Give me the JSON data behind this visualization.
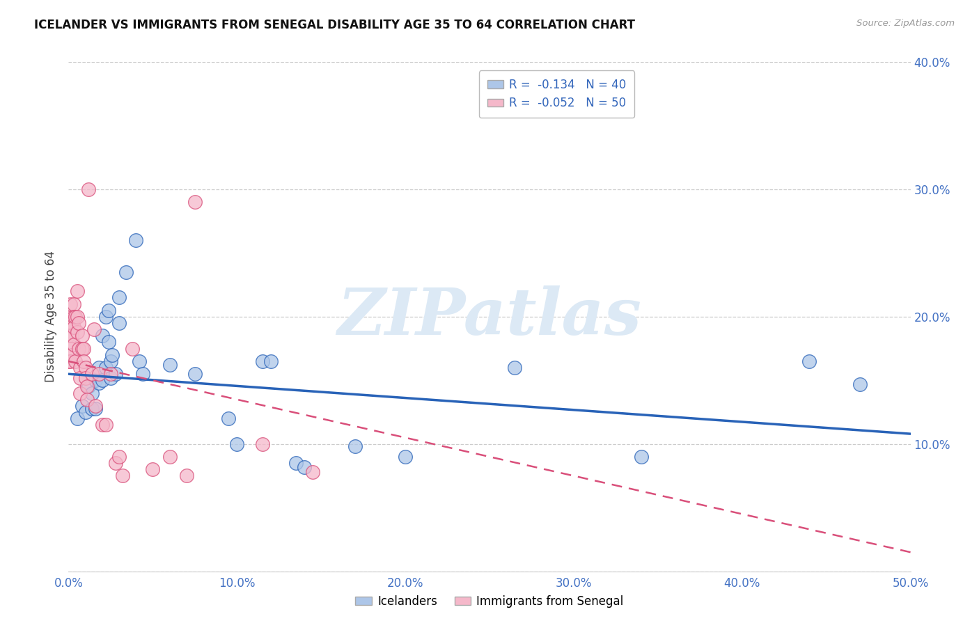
{
  "title": "ICELANDER VS IMMIGRANTS FROM SENEGAL DISABILITY AGE 35 TO 64 CORRELATION CHART",
  "source": "Source: ZipAtlas.com",
  "ylabel": "Disability Age 35 to 64",
  "xlim": [
    0.0,
    0.5
  ],
  "ylim": [
    0.0,
    0.4
  ],
  "xticks": [
    0.0,
    0.1,
    0.2,
    0.3,
    0.4,
    0.5
  ],
  "yticks": [
    0.0,
    0.1,
    0.2,
    0.3,
    0.4
  ],
  "ytick_labels_right": [
    "",
    "10.0%",
    "20.0%",
    "30.0%",
    "40.0%"
  ],
  "xtick_labels": [
    "0.0%",
    "10.0%",
    "20.0%",
    "30.0%",
    "40.0%",
    "50.0%"
  ],
  "legend1_label": "R =  -0.134   N = 40",
  "legend2_label": "R =  -0.052   N = 50",
  "legend_bottom1": "Icelanders",
  "legend_bottom2": "Immigrants from Senegal",
  "watermark": "ZIPatlas",
  "blue_color": "#adc6e8",
  "pink_color": "#f5b8ca",
  "blue_line_color": "#2963b8",
  "pink_line_color": "#d94f7a",
  "blue_line_start_y": 0.155,
  "blue_line_end_y": 0.108,
  "pink_line_start_y": 0.165,
  "pink_line_end_y": 0.015,
  "icelander_x": [
    0.005,
    0.008,
    0.01,
    0.012,
    0.014,
    0.014,
    0.016,
    0.016,
    0.018,
    0.018,
    0.02,
    0.02,
    0.022,
    0.022,
    0.024,
    0.024,
    0.025,
    0.025,
    0.026,
    0.028,
    0.03,
    0.03,
    0.034,
    0.04,
    0.042,
    0.044,
    0.06,
    0.075,
    0.095,
    0.1,
    0.115,
    0.12,
    0.135,
    0.14,
    0.17,
    0.2,
    0.265,
    0.34,
    0.44,
    0.47
  ],
  "icelander_y": [
    0.12,
    0.13,
    0.125,
    0.145,
    0.14,
    0.128,
    0.15,
    0.128,
    0.16,
    0.148,
    0.185,
    0.15,
    0.2,
    0.16,
    0.205,
    0.18,
    0.165,
    0.152,
    0.17,
    0.155,
    0.215,
    0.195,
    0.235,
    0.26,
    0.165,
    0.155,
    0.162,
    0.155,
    0.12,
    0.1,
    0.165,
    0.165,
    0.085,
    0.082,
    0.098,
    0.09,
    0.16,
    0.09,
    0.165,
    0.147
  ],
  "senegal_x": [
    0.0,
    0.0,
    0.0,
    0.0,
    0.001,
    0.001,
    0.001,
    0.002,
    0.002,
    0.002,
    0.003,
    0.003,
    0.003,
    0.003,
    0.004,
    0.004,
    0.005,
    0.005,
    0.005,
    0.006,
    0.006,
    0.007,
    0.007,
    0.007,
    0.008,
    0.008,
    0.009,
    0.009,
    0.01,
    0.01,
    0.011,
    0.011,
    0.012,
    0.014,
    0.015,
    0.016,
    0.018,
    0.02,
    0.022,
    0.025,
    0.028,
    0.03,
    0.032,
    0.038,
    0.05,
    0.06,
    0.07,
    0.075,
    0.115,
    0.145
  ],
  "senegal_y": [
    0.2,
    0.196,
    0.185,
    0.165,
    0.21,
    0.175,
    0.165,
    0.195,
    0.185,
    0.17,
    0.21,
    0.2,
    0.192,
    0.178,
    0.2,
    0.165,
    0.22,
    0.2,
    0.188,
    0.195,
    0.175,
    0.16,
    0.152,
    0.14,
    0.185,
    0.175,
    0.175,
    0.165,
    0.16,
    0.152,
    0.145,
    0.135,
    0.3,
    0.155,
    0.19,
    0.13,
    0.155,
    0.115,
    0.115,
    0.155,
    0.085,
    0.09,
    0.075,
    0.175,
    0.08,
    0.09,
    0.075,
    0.29,
    0.1,
    0.078
  ]
}
